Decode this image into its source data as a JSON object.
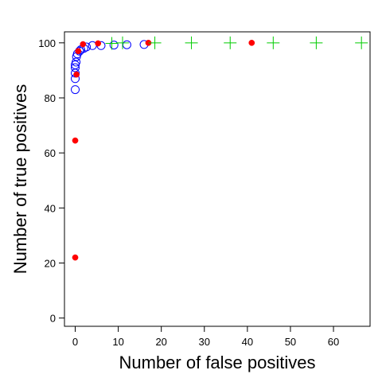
{
  "chart_data": {
    "type": "scatter",
    "title": "",
    "xlabel": "Number of false positives",
    "ylabel": "Number of true positives",
    "xlim": [
      -2.5,
      68.5
    ],
    "ylim": [
      -3,
      104
    ],
    "x_ticks": [
      0,
      10,
      20,
      30,
      40,
      50,
      60
    ],
    "y_ticks": [
      0,
      20,
      40,
      60,
      80,
      100
    ],
    "grid": false,
    "legend": "none",
    "series": [
      {
        "marker": "open-circle",
        "color": "#0000ff",
        "points": [
          {
            "x": 0,
            "y": 83
          },
          {
            "x": 0,
            "y": 87
          },
          {
            "x": 0,
            "y": 89
          },
          {
            "x": 0,
            "y": 91
          },
          {
            "x": 0,
            "y": 92
          },
          {
            "x": 0.2,
            "y": 93
          },
          {
            "x": 0.3,
            "y": 95
          },
          {
            "x": 0.5,
            "y": 96
          },
          {
            "x": 1,
            "y": 97
          },
          {
            "x": 1.3,
            "y": 97.5
          },
          {
            "x": 2,
            "y": 98
          },
          {
            "x": 2.6,
            "y": 98.5
          },
          {
            "x": 4,
            "y": 99
          },
          {
            "x": 6,
            "y": 99
          },
          {
            "x": 9,
            "y": 99.2
          },
          {
            "x": 12,
            "y": 99.3
          },
          {
            "x": 16,
            "y": 99.4
          }
        ]
      },
      {
        "marker": "filled-circle",
        "color": "#ff0000",
        "points": [
          {
            "x": 0,
            "y": 22
          },
          {
            "x": 0,
            "y": 64.5
          },
          {
            "x": 0.3,
            "y": 88.5
          },
          {
            "x": 0.7,
            "y": 97
          },
          {
            "x": 1.8,
            "y": 99.5
          },
          {
            "x": 5.3,
            "y": 99.8
          },
          {
            "x": 17,
            "y": 100
          },
          {
            "x": 41,
            "y": 100
          }
        ]
      },
      {
        "marker": "plus",
        "color": "#00cc00",
        "points": [
          {
            "x": 8.5,
            "y": 99.8
          },
          {
            "x": 11,
            "y": 100
          },
          {
            "x": 18.5,
            "y": 100
          },
          {
            "x": 27,
            "y": 100
          },
          {
            "x": 36,
            "y": 100
          },
          {
            "x": 46,
            "y": 100
          },
          {
            "x": 56,
            "y": 100
          },
          {
            "x": 66.5,
            "y": 100
          }
        ]
      }
    ]
  }
}
